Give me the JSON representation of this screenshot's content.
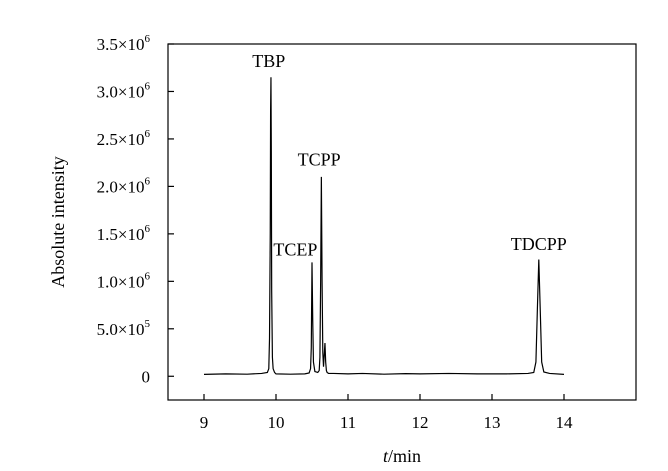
{
  "chart_data": {
    "type": "line",
    "title": "",
    "xlabel": {
      "italic": "t",
      "rest": "/min"
    },
    "ylabel": "Absolute intensity",
    "xlim": [
      8.5,
      15.0
    ],
    "ylim": [
      -250000,
      3500000
    ],
    "grid": false,
    "legend": "none",
    "x_ticks": [
      {
        "value": 9,
        "label": "9"
      },
      {
        "value": 10,
        "label": "10"
      },
      {
        "value": 11,
        "label": "11"
      },
      {
        "value": 12,
        "label": "12"
      },
      {
        "value": 13,
        "label": "13"
      },
      {
        "value": 14,
        "label": "14"
      }
    ],
    "y_ticks": [
      {
        "value": 0,
        "mant": "0",
        "exp": ""
      },
      {
        "value": 500000,
        "mant": "5.0×10",
        "exp": "5"
      },
      {
        "value": 1000000,
        "mant": "1.0×10",
        "exp": "6"
      },
      {
        "value": 1500000,
        "mant": "1.5×10",
        "exp": "6"
      },
      {
        "value": 2000000,
        "mant": "2.0×10",
        "exp": "6"
      },
      {
        "value": 2500000,
        "mant": "2.5×10",
        "exp": "6"
      },
      {
        "value": 3000000,
        "mant": "3.0×10",
        "exp": "6"
      },
      {
        "value": 3500000,
        "mant": "3.5×10",
        "exp": "6"
      }
    ],
    "baseline": 20000,
    "peaks": [
      {
        "name": "TBP",
        "x": 9.93,
        "height": 3150000,
        "label_x": 9.9,
        "label_y": 3260000
      },
      {
        "name": "TCEP",
        "x": 10.5,
        "height": 1200000,
        "label_x": 10.27,
        "label_y": 1270000
      },
      {
        "name": "TCPP",
        "x": 10.63,
        "height": 2100000,
        "label_x": 10.6,
        "label_y": 2220000
      },
      {
        "name": "TDCPP",
        "x": 13.65,
        "height": 1230000,
        "label_x": 13.65,
        "label_y": 1330000
      }
    ],
    "series": [
      {
        "x": [
          9.0,
          9.3,
          9.6,
          9.8,
          9.88,
          9.9,
          9.91,
          9.92,
          9.925,
          9.93,
          9.935,
          9.94,
          9.95,
          9.96,
          9.98,
          10.0,
          10.2,
          10.4,
          10.46,
          10.48,
          10.49,
          10.5,
          10.51,
          10.52,
          10.54,
          10.58,
          10.6,
          10.61,
          10.62,
          10.63,
          10.64,
          10.65,
          10.66,
          10.68,
          10.69,
          10.7,
          10.71,
          10.73,
          10.8,
          11.0,
          11.2,
          11.5,
          11.8,
          12.0,
          12.4,
          12.8,
          13.2,
          13.5,
          13.58,
          13.61,
          13.63,
          13.65,
          13.67,
          13.69,
          13.72,
          13.8,
          14.0
        ],
        "y": [
          20000,
          25000,
          22000,
          30000,
          40000,
          80000,
          400000,
          1500000,
          2800000,
          3150000,
          2350000,
          900000,
          200000,
          80000,
          40000,
          25000,
          22000,
          25000,
          35000,
          80000,
          300000,
          1200000,
          600000,
          150000,
          50000,
          40000,
          60000,
          200000,
          1000000,
          2100000,
          1000000,
          250000,
          100000,
          350000,
          150000,
          60000,
          40000,
          30000,
          30000,
          25000,
          30000,
          22000,
          28000,
          25000,
          30000,
          25000,
          25000,
          30000,
          40000,
          150000,
          700000,
          1230000,
          700000,
          150000,
          45000,
          30000,
          20000
        ]
      }
    ]
  }
}
